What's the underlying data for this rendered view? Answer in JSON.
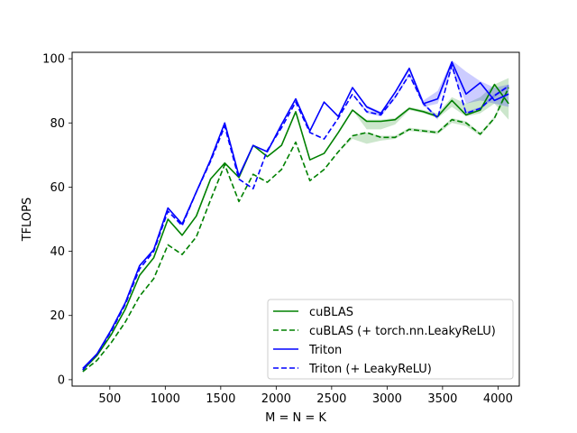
{
  "chart_data": {
    "type": "line",
    "xlabel": "M = N = K",
    "ylabel": "TFLOPS",
    "xlim": [
      160,
      4192
    ],
    "ylim": [
      -2,
      102
    ],
    "xticks": [
      500,
      1000,
      1500,
      2000,
      2500,
      3000,
      3500,
      4000
    ],
    "yticks": [
      0,
      20,
      40,
      60,
      80,
      100
    ],
    "grid": false,
    "legend_position": "lower-right",
    "x": [
      256,
      384,
      512,
      640,
      768,
      896,
      1024,
      1152,
      1280,
      1408,
      1536,
      1664,
      1792,
      1920,
      2048,
      2176,
      2304,
      2432,
      2560,
      2688,
      2816,
      2944,
      3072,
      3200,
      3328,
      3456,
      3584,
      3712,
      3840,
      3968,
      4096
    ],
    "series": [
      {
        "name": "cuBLAS",
        "color": "#008000",
        "dash": "solid",
        "values": [
          3,
          7.5,
          14,
          22,
          32.5,
          38,
          50,
          45,
          51,
          62.5,
          67.5,
          63,
          73,
          69.5,
          73,
          83.5,
          68.5,
          70.5,
          77,
          84,
          80.5,
          80.5,
          81,
          84.5,
          83.5,
          82,
          87,
          82.5,
          84,
          92,
          86
        ],
        "band_low": [
          3,
          7.5,
          14,
          22,
          32.5,
          38,
          50,
          45,
          51,
          62.5,
          67.5,
          63,
          73,
          69.5,
          73,
          83.5,
          68.5,
          70.5,
          77,
          84,
          78,
          78,
          79.5,
          84,
          83,
          81.5,
          85,
          82,
          83,
          86,
          81
        ],
        "band_high": [
          3,
          7.5,
          14,
          22,
          32.5,
          38,
          50,
          45,
          51,
          62.5,
          67.5,
          63,
          73,
          69.5,
          73,
          83.5,
          68.5,
          70.5,
          77,
          84,
          81,
          81,
          81.5,
          85,
          84,
          83,
          88,
          86,
          88,
          92,
          94
        ]
      },
      {
        "name": "cuBLAS (+ torch.nn.LeakyReLU)",
        "color": "#008000",
        "dash": "dashed",
        "values": [
          2.5,
          6,
          11.5,
          18,
          26,
          31.5,
          42,
          39,
          44.5,
          56,
          67,
          55.5,
          64,
          61.5,
          65.5,
          74,
          62,
          65.5,
          71,
          76,
          77,
          75.5,
          75.5,
          78,
          77.5,
          77,
          81,
          80,
          76.5,
          81.5,
          91
        ],
        "band_low": [
          2.5,
          6,
          11.5,
          18,
          26,
          31.5,
          42,
          39,
          44.5,
          56,
          67,
          55.5,
          64,
          61.5,
          65.5,
          74,
          62,
          65.5,
          71,
          75,
          73.5,
          74.5,
          75,
          77.5,
          77,
          76.5,
          80,
          79,
          76,
          81,
          90
        ],
        "band_high": [
          2.5,
          6,
          11.5,
          18,
          26,
          31.5,
          42,
          39,
          44.5,
          56,
          67,
          55.5,
          64,
          61.5,
          65.5,
          74,
          62,
          65.5,
          71,
          76,
          77,
          76,
          76,
          78.5,
          78,
          77.5,
          81.5,
          80.5,
          77,
          82,
          92
        ]
      },
      {
        "name": "Triton",
        "color": "#0000ff",
        "dash": "solid",
        "values": [
          3.5,
          8,
          15.5,
          24,
          35.5,
          40.5,
          53.5,
          48.5,
          58.5,
          68.5,
          80,
          63.5,
          73,
          71,
          79.5,
          87.5,
          77.5,
          86.5,
          82,
          91,
          85,
          83,
          89.5,
          97,
          86,
          87.5,
          99,
          89,
          92.5,
          87,
          89
        ],
        "band_low": [
          3.5,
          8,
          15.5,
          24,
          35.5,
          40.5,
          53.5,
          48.5,
          58.5,
          68.5,
          80,
          63.5,
          73,
          71,
          79.5,
          87.5,
          77.5,
          86.5,
          82,
          91,
          84.5,
          82.5,
          89,
          96,
          85,
          86,
          97,
          86,
          87,
          86,
          85
        ],
        "band_high": [
          3.5,
          8,
          15.5,
          24,
          35.5,
          40.5,
          53.5,
          48.5,
          58.5,
          68.5,
          80,
          63.5,
          73,
          71,
          79.5,
          87.5,
          77.5,
          86.5,
          82,
          91,
          85.5,
          83.5,
          90,
          97.5,
          87,
          90,
          99.5,
          96,
          93,
          91,
          92
        ]
      },
      {
        "name": "Triton (+ LeakyReLU)",
        "color": "#0000ff",
        "dash": "dashed",
        "values": [
          3,
          8,
          15,
          23.5,
          34.5,
          40,
          52.5,
          48,
          58.5,
          68,
          79,
          62.5,
          59.5,
          71.5,
          78.5,
          86.5,
          77,
          75,
          81.5,
          89,
          83.5,
          82.5,
          88,
          95,
          86,
          81.5,
          98,
          83,
          84.5,
          88.5,
          91.5
        ],
        "band_low": [
          3,
          8,
          15,
          23.5,
          34.5,
          40,
          52.5,
          48,
          58.5,
          68,
          79,
          62.5,
          59.5,
          71.5,
          78.5,
          86.5,
          77,
          75,
          81.5,
          89,
          83,
          82,
          87.5,
          94.5,
          85.5,
          81,
          97.5,
          82.5,
          84,
          88,
          91
        ],
        "band_high": [
          3,
          8,
          15,
          23.5,
          34.5,
          40,
          52.5,
          48,
          58.5,
          68,
          79,
          62.5,
          59.5,
          71.5,
          78.5,
          86.5,
          77,
          75,
          81.5,
          89,
          84,
          83,
          88.5,
          95.5,
          86.5,
          82,
          98.5,
          83.5,
          85,
          89,
          92
        ]
      }
    ]
  }
}
